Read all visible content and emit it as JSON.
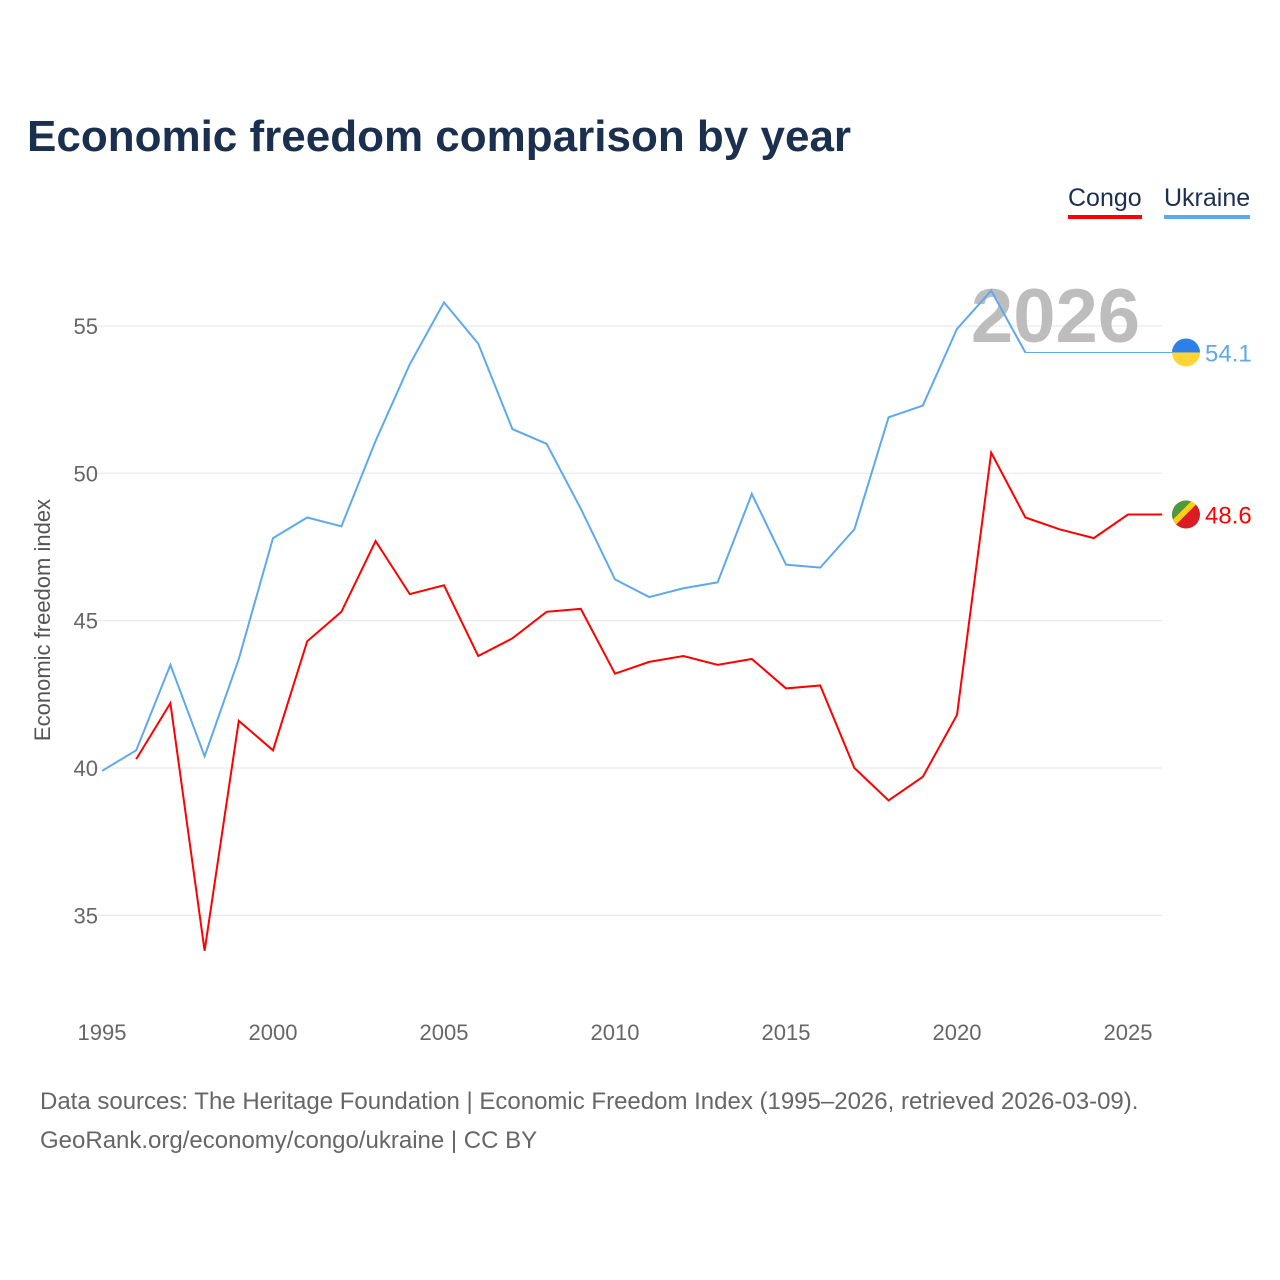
{
  "title": "Economic freedom comparison by year",
  "legend": [
    {
      "label": "Congo",
      "color": "#ff0000"
    },
    {
      "label": "Ukraine",
      "color": "#5ea9ec"
    }
  ],
  "year_watermark": "2026",
  "source_line1": "Data sources: The Heritage Foundation | Economic Freedom Index (1995–2026, retrieved 2026-03-09).",
  "source_line2": "GeoRank.org/economy/congo/ukraine | CC BY",
  "chart_data": {
    "type": "line",
    "title": "Economic freedom comparison by year",
    "xlabel": "",
    "ylabel": "Economic freedom index",
    "xlim": [
      1995,
      2026
    ],
    "ylim": [
      32,
      57.5
    ],
    "xticks": [
      1995,
      2000,
      2005,
      2010,
      2015,
      2020,
      2025
    ],
    "yticks": [
      35,
      40,
      45,
      50,
      55
    ],
    "grid": true,
    "legend_position": "top-right",
    "series": [
      {
        "name": "Congo",
        "color": "#ff0000",
        "end_label": "48.6",
        "x": [
          1996,
          1997,
          1998,
          1999,
          2000,
          2001,
          2002,
          2003,
          2004,
          2005,
          2006,
          2007,
          2008,
          2009,
          2010,
          2011,
          2012,
          2013,
          2014,
          2015,
          2016,
          2017,
          2018,
          2019,
          2020,
          2021,
          2022,
          2023,
          2024,
          2025,
          2026
        ],
        "y": [
          40.3,
          42.2,
          33.8,
          41.6,
          40.6,
          44.3,
          45.3,
          47.7,
          45.9,
          46.2,
          43.8,
          44.4,
          45.3,
          45.4,
          43.2,
          43.6,
          43.8,
          43.5,
          43.7,
          42.7,
          42.8,
          40.0,
          38.9,
          39.7,
          41.8,
          50.7,
          48.5,
          48.1,
          47.8,
          48.6,
          48.6
        ]
      },
      {
        "name": "Ukraine",
        "color": "#5ea9ec",
        "end_label": "54.1",
        "x": [
          1995,
          1996,
          1997,
          1998,
          1999,
          2000,
          2001,
          2002,
          2003,
          2004,
          2005,
          2006,
          2007,
          2008,
          2009,
          2010,
          2011,
          2012,
          2013,
          2014,
          2015,
          2016,
          2017,
          2018,
          2019,
          2020,
          2021,
          2022
        ],
        "y": [
          39.9,
          40.6,
          43.5,
          40.4,
          43.7,
          47.8,
          48.5,
          48.2,
          51.1,
          53.7,
          55.8,
          54.4,
          51.5,
          51.0,
          48.8,
          46.4,
          45.8,
          46.1,
          46.3,
          49.3,
          46.9,
          46.8,
          48.1,
          51.9,
          52.3,
          54.9,
          56.2,
          54.1
        ]
      }
    ]
  }
}
